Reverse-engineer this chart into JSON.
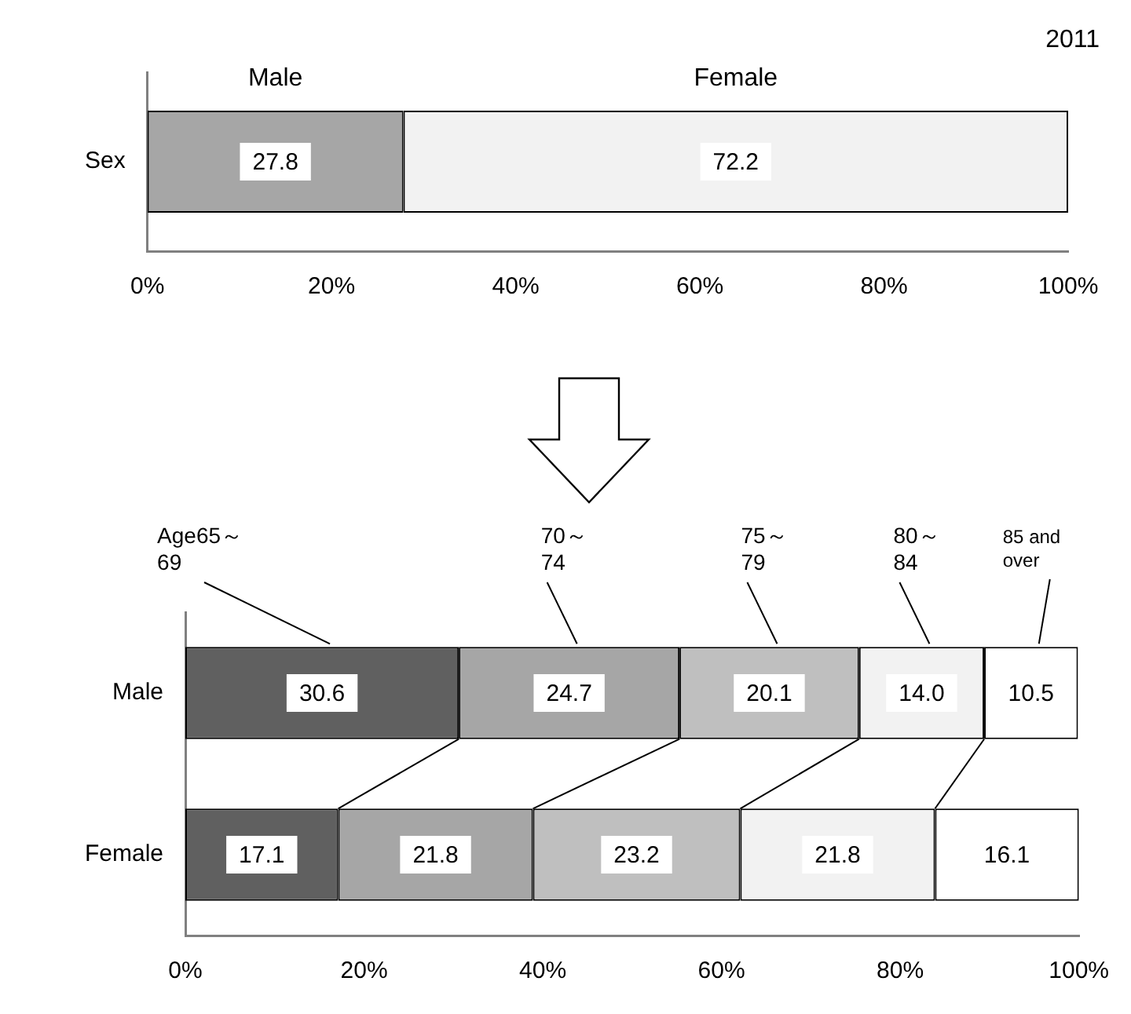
{
  "chart_data": [
    {
      "type": "bar",
      "orientation": "horizontal",
      "stacked": true,
      "categories": [
        "Sex"
      ],
      "series": [
        {
          "name": "Male",
          "color": "#a6a6a6",
          "values": [
            27.8
          ],
          "value_labels": [
            "27.8"
          ]
        },
        {
          "name": "Female",
          "color": "#f2f2f2",
          "values": [
            72.2
          ],
          "value_labels": [
            "72.2"
          ]
        }
      ],
      "xlim": [
        0,
        100
      ],
      "xticks": [
        {
          "value": 0,
          "label": "0%"
        },
        {
          "value": 20,
          "label": "20%"
        },
        {
          "value": 40,
          "label": "40%"
        },
        {
          "value": 60,
          "label": "60%"
        },
        {
          "value": 80,
          "label": "80%"
        },
        {
          "value": 100,
          "label": "100%"
        }
      ],
      "annotations": [
        "2011"
      ]
    },
    {
      "type": "bar",
      "orientation": "horizontal",
      "stacked": true,
      "categories": [
        "Male",
        "Female"
      ],
      "series": [
        {
          "name": "Age65～\n69",
          "color": "#606060",
          "values": [
            30.6,
            17.1
          ],
          "value_labels": [
            "30.6",
            "17.1"
          ]
        },
        {
          "name": "70～\n74",
          "color": "#a6a6a6",
          "values": [
            24.7,
            21.8
          ],
          "value_labels": [
            "24.7",
            "21.8"
          ]
        },
        {
          "name": "75～\n79",
          "color": "#bfbfbf",
          "values": [
            20.1,
            23.2
          ],
          "value_labels": [
            "20.1",
            "23.2"
          ]
        },
        {
          "name": "80～\n84",
          "color": "#f2f2f2",
          "values": [
            14.0,
            21.8
          ],
          "value_labels": [
            "14.0",
            "21.8"
          ]
        },
        {
          "name": "85 and\nover",
          "color": "#ffffff",
          "values": [
            10.5,
            16.1
          ],
          "value_labels": [
            "10.5",
            "16.1"
          ]
        }
      ],
      "xlim": [
        0,
        100
      ],
      "xticks": [
        {
          "value": 0,
          "label": "0%"
        },
        {
          "value": 20,
          "label": "20%"
        },
        {
          "value": 40,
          "label": "40%"
        },
        {
          "value": 60,
          "label": "60%"
        },
        {
          "value": 80,
          "label": "80%"
        },
        {
          "value": 100,
          "label": "100%"
        }
      ]
    }
  ]
}
